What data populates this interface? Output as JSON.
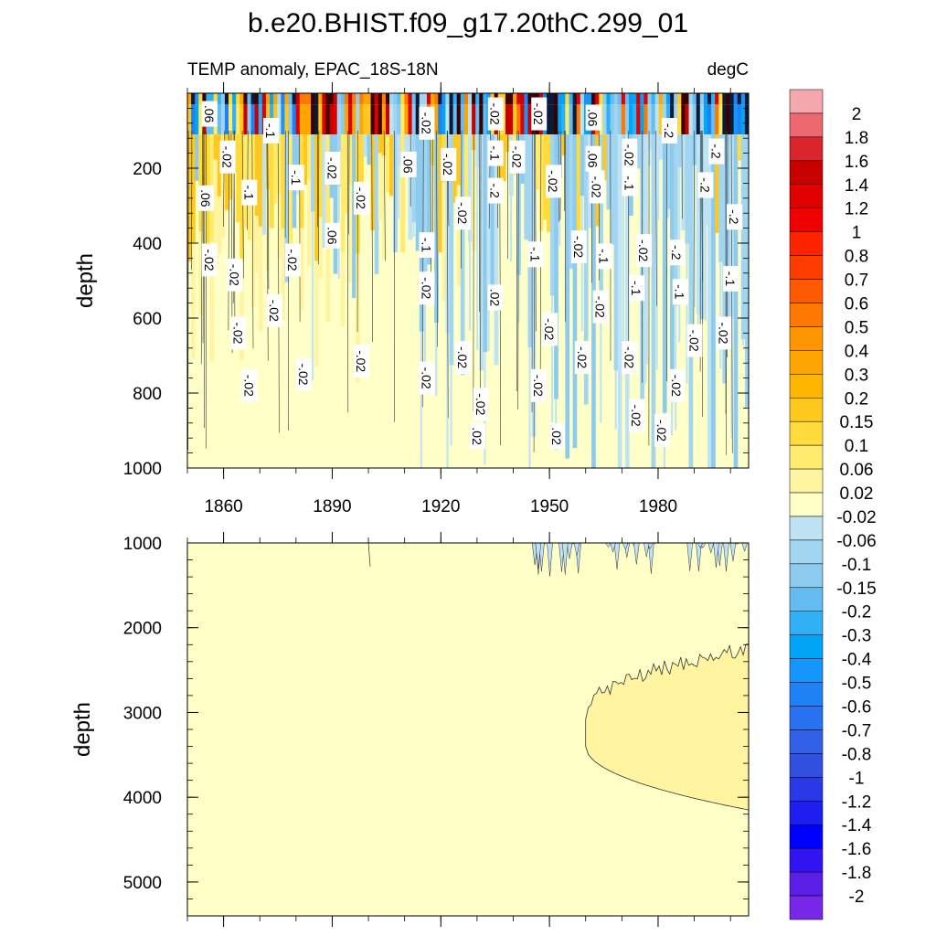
{
  "chart_data": {
    "type": "heatmap",
    "title": "b.e20.BHIST.f09_g17.20thC.299_01",
    "subtitle_left": "TEMP anomaly, EPAC_18S-18N",
    "subtitle_right": "degC",
    "panels": [
      {
        "name": "upper",
        "ylabel": "depth",
        "ylim": [
          0,
          1000
        ],
        "yticks": [
          200,
          400,
          600,
          800,
          1000
        ],
        "xlim": [
          1850,
          2005
        ],
        "xticks": [
          1860,
          1890,
          1920,
          1950,
          1980
        ],
        "xticklabels": [
          "1860",
          "1890",
          "1920",
          "1950",
          "1980"
        ],
        "contour_labels": [
          {
            "text": ".06",
            "x": 1856,
            "y": 55
          },
          {
            "text": "-.1",
            "x": 1873,
            "y": 100
          },
          {
            "text": "-.02",
            "x": 1861,
            "y": 170
          },
          {
            "text": "-.1",
            "x": 1867,
            "y": 265
          },
          {
            "text": ".06",
            "x": 1855,
            "y": 280
          },
          {
            "text": "-.1",
            "x": 1880,
            "y": 225
          },
          {
            "text": "-.02",
            "x": 1890,
            "y": 200
          },
          {
            "text": "-.02",
            "x": 1898,
            "y": 280
          },
          {
            "text": ".06",
            "x": 1890,
            "y": 380
          },
          {
            "text": "-.02",
            "x": 1856,
            "y": 445
          },
          {
            "text": "-.02",
            "x": 1863,
            "y": 485
          },
          {
            "text": "-.02",
            "x": 1879,
            "y": 445
          },
          {
            "text": "-.02",
            "x": 1874,
            "y": 580
          },
          {
            "text": "-.02",
            "x": 1864,
            "y": 640
          },
          {
            "text": "-.02",
            "x": 1867,
            "y": 780
          },
          {
            "text": "-.02",
            "x": 1882,
            "y": 750
          },
          {
            "text": "-.02",
            "x": 1898,
            "y": 715
          },
          {
            "text": "-.02",
            "x": 1916,
            "y": 80
          },
          {
            "text": ".06",
            "x": 1911,
            "y": 190
          },
          {
            "text": "-.02",
            "x": 1922,
            "y": 190
          },
          {
            "text": "-.02",
            "x": 1926,
            "y": 320
          },
          {
            "text": "-.1",
            "x": 1916,
            "y": 405
          },
          {
            "text": "-.02",
            "x": 1916,
            "y": 520
          },
          {
            "text": "-.02",
            "x": 1916,
            "y": 760
          },
          {
            "text": "-.02",
            "x": 1926,
            "y": 705
          },
          {
            "text": "-.02",
            "x": 1935,
            "y": 55
          },
          {
            "text": "-.1",
            "x": 1935,
            "y": 160
          },
          {
            "text": "-.2",
            "x": 1935,
            "y": 260
          },
          {
            "text": "-.02",
            "x": 1941,
            "y": 170
          },
          {
            "text": ".02",
            "x": 1935,
            "y": 545
          },
          {
            "text": "-.02",
            "x": 1931,
            "y": 830
          },
          {
            "text": ".02",
            "x": 1930,
            "y": 915
          },
          {
            "text": "-.02",
            "x": 1947,
            "y": 55
          },
          {
            "text": "-.02",
            "x": 1951,
            "y": 235
          },
          {
            "text": "-.1",
            "x": 1946,
            "y": 430
          },
          {
            "text": "-.02",
            "x": 1950,
            "y": 630
          },
          {
            "text": "-.02",
            "x": 1947,
            "y": 780
          },
          {
            "text": ".02",
            "x": 1952,
            "y": 915
          },
          {
            "text": ".06",
            "x": 1962,
            "y": 65
          },
          {
            "text": ".06",
            "x": 1962,
            "y": 175
          },
          {
            "text": "-.02",
            "x": 1963,
            "y": 250
          },
          {
            "text": "-.02",
            "x": 1958,
            "y": 410
          },
          {
            "text": "-.1",
            "x": 1965,
            "y": 435
          },
          {
            "text": "-.02",
            "x": 1964,
            "y": 570
          },
          {
            "text": "-.02",
            "x": 1959,
            "y": 705
          },
          {
            "text": "-.02",
            "x": 1972,
            "y": 165
          },
          {
            "text": "-.1",
            "x": 1972,
            "y": 240
          },
          {
            "text": "-.02",
            "x": 1976,
            "y": 420
          },
          {
            "text": "-.1",
            "x": 1974,
            "y": 520
          },
          {
            "text": "-.02",
            "x": 1972,
            "y": 705
          },
          {
            "text": "-.02",
            "x": 1974,
            "y": 860
          },
          {
            "text": "-.2",
            "x": 1983,
            "y": 100
          },
          {
            "text": "-.2",
            "x": 1985,
            "y": 425
          },
          {
            "text": "-.1",
            "x": 1986,
            "y": 530
          },
          {
            "text": "-.02",
            "x": 1985,
            "y": 780
          },
          {
            "text": "-.02",
            "x": 1981,
            "y": 900
          },
          {
            "text": "-.2",
            "x": 1996,
            "y": 155
          },
          {
            "text": "-.2",
            "x": 1993,
            "y": 245
          },
          {
            "text": "-.2",
            "x": 2001,
            "y": 330
          },
          {
            "text": "-.1",
            "x": 2000,
            "y": 495
          },
          {
            "text": "-.02",
            "x": 1990,
            "y": 660
          },
          {
            "text": "-.02",
            "x": 1998,
            "y": 640
          }
        ]
      },
      {
        "name": "lower",
        "ylabel": "depth",
        "ylim": [
          1000,
          5400
        ],
        "yticks": [
          1000,
          2000,
          3000,
          4000,
          5000
        ],
        "xlim": [
          1850,
          2005
        ],
        "xticks": [
          1860,
          1890,
          1920,
          1950,
          1980
        ],
        "background_level": "-0.02 to 0.02",
        "warm_region_level": "0.02 to 0.06",
        "warm_region_start_year": 1960,
        "warm_region_top_depth_start": 3000,
        "warm_region_top_depth_end": 2250,
        "warm_region_bottom_depth_start": 3400,
        "warm_region_bottom_depth_end": 4150
      }
    ],
    "colorbar": {
      "labels": [
        "2",
        "1.8",
        "1.6",
        "1.4",
        "1.2",
        "1",
        "0.8",
        "0.7",
        "0.6",
        "0.5",
        "0.4",
        "0.3",
        "0.2",
        "0.15",
        "0.1",
        "0.06",
        "0.02",
        "-0.02",
        "-0.06",
        "-0.1",
        "-0.15",
        "-0.2",
        "-0.3",
        "-0.4",
        "-0.5",
        "-0.6",
        "-0.7",
        "-0.8",
        "-1",
        "-1.2",
        "-1.4",
        "-1.6",
        "-1.8",
        "-2"
      ],
      "colors": [
        "#f5a8ac",
        "#ec6a6f",
        "#d9262d",
        "#c80000",
        "#e00000",
        "#f00000",
        "#ff2400",
        "#ff3c00",
        "#ff5a00",
        "#ff7800",
        "#ff9600",
        "#ffa500",
        "#ffb600",
        "#ffc81e",
        "#ffdc3c",
        "#ffeb6e",
        "#fff5a0",
        "#ffffc8",
        "#bfe3f2",
        "#a2d6f0",
        "#8ccaee",
        "#64bcf0",
        "#32b0f5",
        "#00a5f5",
        "#1496fa",
        "#1e82f5",
        "#2872f0",
        "#3260e6",
        "#3250e0",
        "#2a38e6",
        "#1e1ef0",
        "#0000ff",
        "#3214f0",
        "#5a1ee6",
        "#7828e6"
      ],
      "units": "degC"
    }
  }
}
